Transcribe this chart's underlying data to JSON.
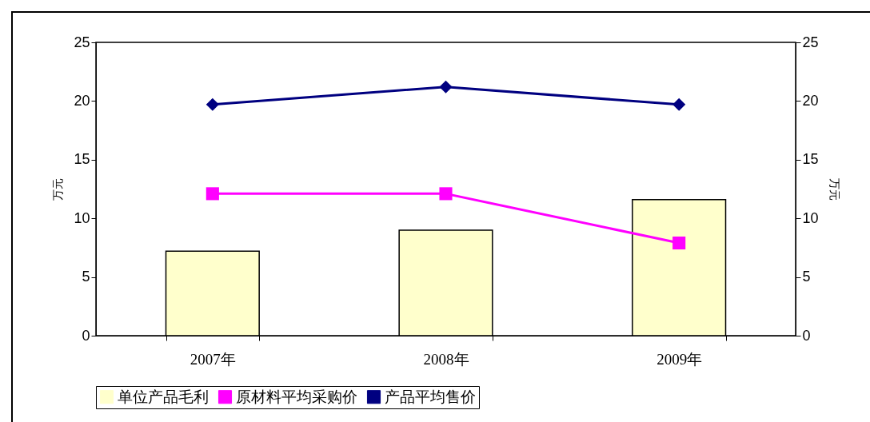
{
  "chart_data": {
    "type": "bar",
    "ylabel": "万元",
    "y2label": "万元",
    "categories": [
      "2007年",
      "2008年",
      "2009年"
    ],
    "series": [
      {
        "name": "单位产品毛利",
        "color": "#ffffcc",
        "values": [
          7.2,
          9.0,
          11.6
        ]
      },
      {
        "name": "原材料平均采购价",
        "type": "line",
        "axis": "y2",
        "marker": "square",
        "color": "#ff00ff",
        "values": [
          12.1,
          12.1,
          7.9
        ]
      },
      {
        "name": "产品平均售价",
        "type": "line",
        "axis": "y2",
        "marker": "diamond",
        "color": "#000080",
        "values": [
          19.7,
          21.2,
          19.7
        ]
      }
    ],
    "ylim": [
      0,
      25
    ],
    "yticks": [
      0,
      5,
      10,
      15,
      20,
      25
    ],
    "y2lim": [
      0,
      25
    ],
    "y2ticks": [
      0,
      5,
      10,
      15,
      20,
      25
    ],
    "grid": false,
    "legend": "bottom"
  }
}
